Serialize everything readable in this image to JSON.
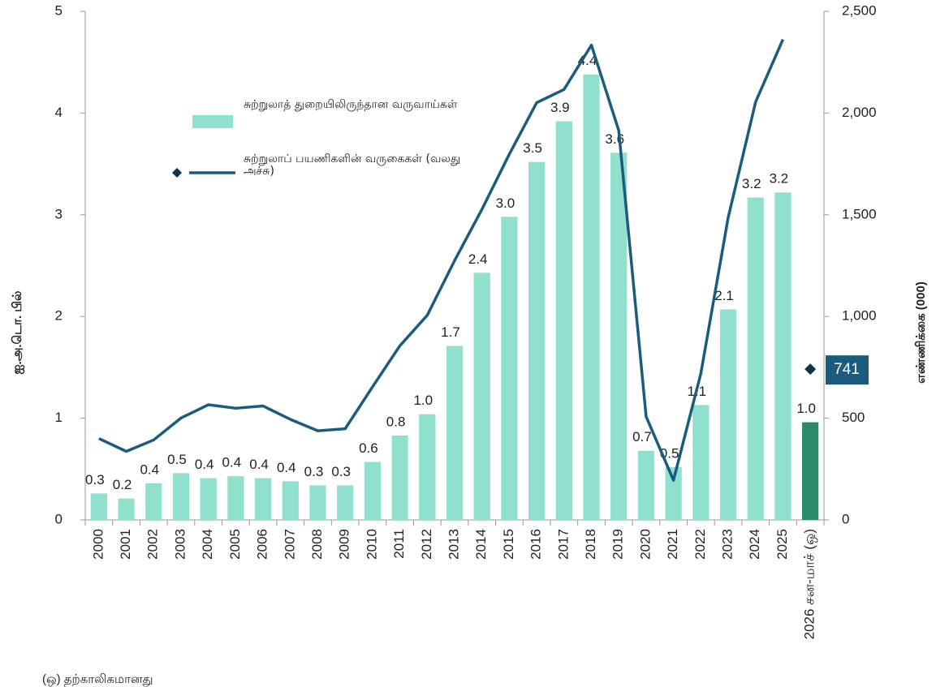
{
  "chart_data": {
    "type": "bar_line",
    "categories": [
      "2000",
      "2001",
      "2002",
      "2003",
      "2004",
      "2005",
      "2006",
      "2007",
      "2008",
      "2009",
      "2010",
      "2011",
      "2012",
      "2013",
      "2014",
      "2015",
      "2016",
      "2017",
      "2018",
      "2019",
      "2020",
      "2021",
      "2022",
      "2023",
      "2024",
      "2025",
      "2026 சன-மாச் (ஒ)"
    ],
    "series": [
      {
        "name": "சுற்றுலாத் துறையிலிருந்தான வருவாய்கள்",
        "type": "bar",
        "color": "#8fe1cd",
        "highlight_color": "#2a8a6e",
        "values": [
          0.26,
          0.21,
          0.36,
          0.46,
          0.41,
          0.43,
          0.41,
          0.38,
          0.34,
          0.34,
          0.57,
          0.83,
          1.04,
          1.71,
          2.43,
          2.98,
          3.52,
          3.92,
          4.38,
          3.61,
          0.68,
          0.52,
          1.13,
          2.07,
          3.17,
          3.22,
          0.96
        ],
        "value_labels": [
          "0.3",
          "0.2",
          "0.4",
          "0.5",
          "0.4",
          "0.4",
          "0.4",
          "0.4",
          "0.3",
          "0.3",
          "0.6",
          "0.8",
          "1.0",
          "1.7",
          "2.4",
          "3.0",
          "3.5",
          "3.9",
          "4.4",
          "3.6",
          "0.7",
          "0.5",
          "1.1",
          "2.1",
          "3.2",
          "3.2",
          "1.0"
        ]
      },
      {
        "name": "சுற்றுலாப் பயணிகளின் வருகைகள் (வலது அச்சு)",
        "type": "line",
        "axis": "y2",
        "color": "#1b5c7e",
        "values": [
          400,
          337,
          393,
          501,
          566,
          549,
          560,
          494,
          438,
          448,
          654,
          856,
          1006,
          1275,
          1527,
          1798,
          2051,
          2116,
          2334,
          1914,
          508,
          195,
          720,
          1487,
          2054,
          2362,
          null
        ]
      }
    ],
    "annotation": {
      "value": 741,
      "category_index": 26,
      "axis": "y2"
    },
    "ylim": [
      0,
      5
    ],
    "yticks": [
      0,
      1,
      2,
      3,
      4,
      5
    ],
    "y2lim": [
      0,
      2500
    ],
    "y2ticks": [
      0,
      500,
      {
        "value": 1000,
        "label": "1,000"
      },
      {
        "value": 1500,
        "label": "1,500"
      },
      {
        "value": 2000,
        "label": "2,000"
      },
      {
        "value": 2500,
        "label": "2,500"
      }
    ],
    "ylabel": "ஐ.அ.டொ. பில்",
    "y2label": "எண்ணிக்கை (000)",
    "footnote": "(ஒ) தற்காலிகமானது"
  }
}
